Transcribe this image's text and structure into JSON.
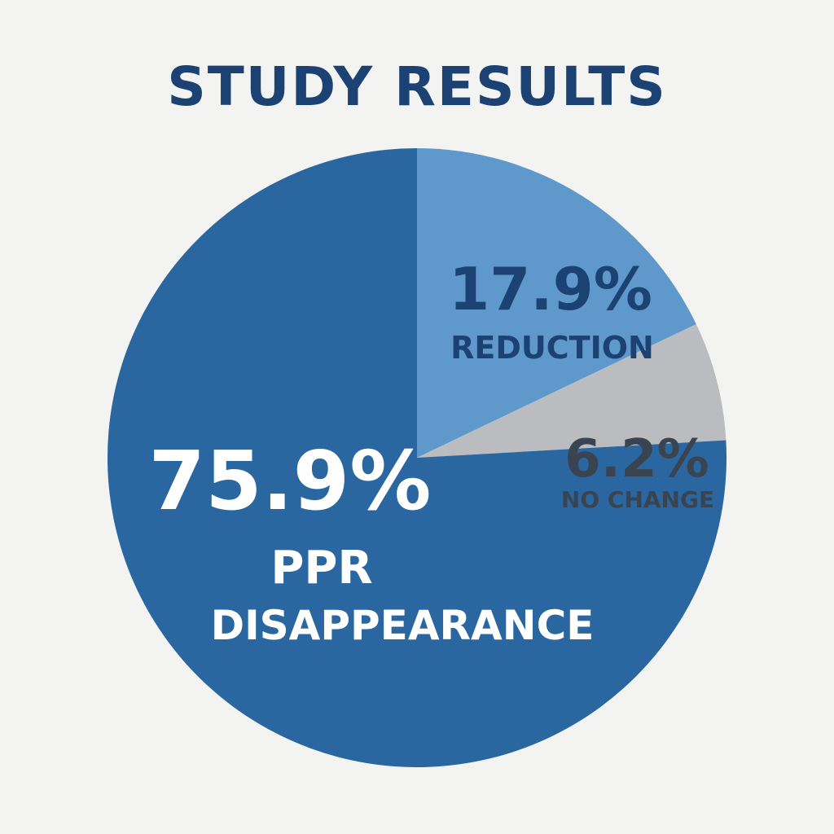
{
  "chart_data": {
    "type": "pie",
    "title": "STUDY RESULTS",
    "slices": [
      {
        "value": 17.9,
        "label": "17.9%",
        "name": "REDUCTION",
        "color": "#5f98cb",
        "text_color": "#1b4272"
      },
      {
        "value": 6.2,
        "label": "6.2%",
        "name": "NO CHANGE",
        "color": "#babcbf",
        "text_color": "#3a4350"
      },
      {
        "value": 75.9,
        "label": "75.9%",
        "name_lines": [
          "PPR",
          "DISAPPEARANCE"
        ],
        "color": "#2a67a0",
        "text_color": "#ffffff"
      }
    ]
  }
}
